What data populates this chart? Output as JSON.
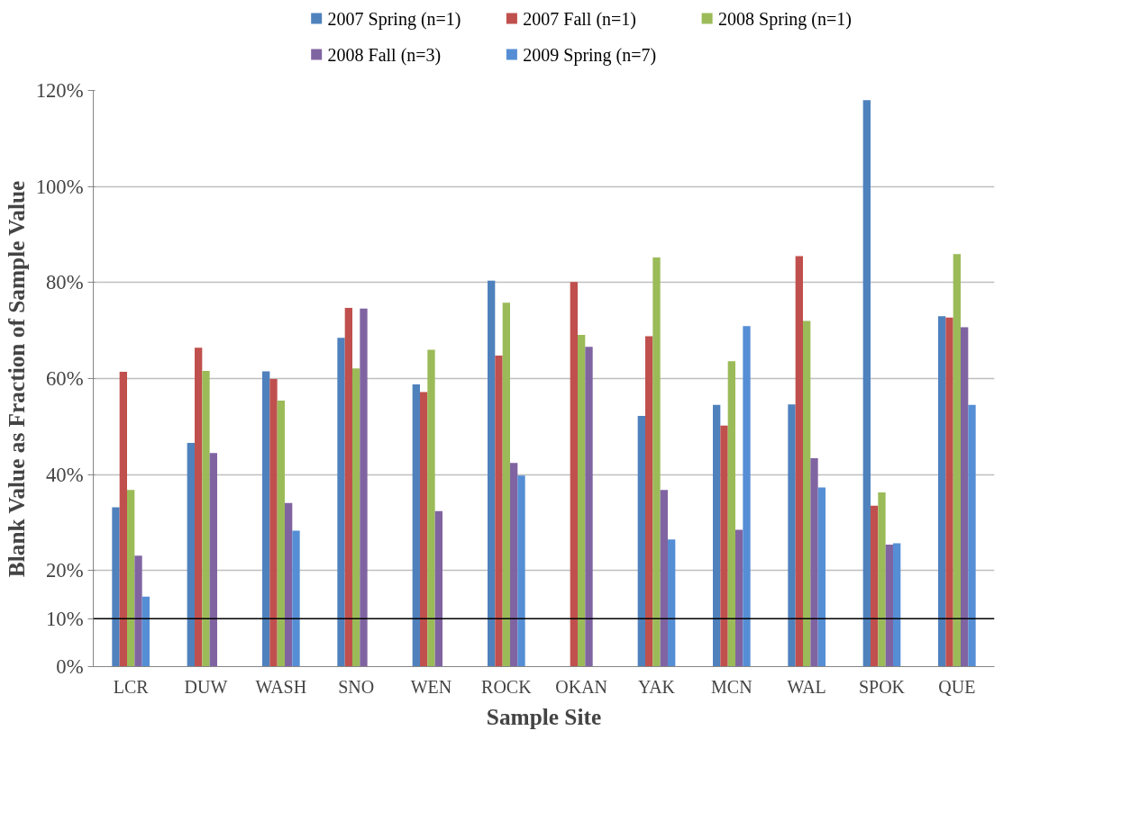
{
  "chart_data": {
    "type": "bar",
    "categories": [
      "LCR",
      "DUW",
      "WASH",
      "SNO",
      "WEN",
      "ROCK",
      "OKAN",
      "YAK",
      "MCN",
      "WAL",
      "SPOK",
      "QUE"
    ],
    "series": [
      {
        "name": "2007 Spring (n=1)",
        "color": "#4f81bd",
        "values": [
          33.2,
          46.6,
          61.5,
          68.5,
          58.8,
          80.4,
          null,
          52.2,
          54.5,
          54.6,
          118.0,
          73.0
        ]
      },
      {
        "name": "2007 Fall (n=1)",
        "color": "#c0504d",
        "values": [
          61.4,
          66.4,
          59.9,
          74.7,
          57.2,
          64.8,
          80.1,
          68.8,
          50.2,
          85.5,
          33.5,
          72.7
        ]
      },
      {
        "name": "2008 Spring (n=1)",
        "color": "#9bbb59",
        "values": [
          36.8,
          61.6,
          55.4,
          62.1,
          66.0,
          75.8,
          69.1,
          85.2,
          63.6,
          72.0,
          36.3,
          85.9
        ]
      },
      {
        "name": "2008 Fall (n=3)",
        "color": "#8064a2",
        "values": [
          23.1,
          44.5,
          34.1,
          74.6,
          32.4,
          42.4,
          66.6,
          36.8,
          28.5,
          43.4,
          25.4,
          70.7
        ]
      },
      {
        "name": "2009 Spring (n=7)",
        "color": "#558ed5",
        "values": [
          14.6,
          null,
          28.3,
          null,
          null,
          39.8,
          null,
          26.5,
          70.9,
          37.3,
          25.7,
          54.5
        ]
      }
    ],
    "xlabel": "Sample Site",
    "ylabel": "Blank Value as Fraction of Sample Value",
    "ylim": [
      0,
      120
    ],
    "yticks": [
      {
        "value": 0,
        "label": "0%"
      },
      {
        "value": 10,
        "label": "10%"
      },
      {
        "value": 20,
        "label": "20%"
      },
      {
        "value": 40,
        "label": "40%"
      },
      {
        "value": 60,
        "label": "60%"
      },
      {
        "value": 80,
        "label": "80%"
      },
      {
        "value": 100,
        "label": "100%"
      },
      {
        "value": 120,
        "label": "120%"
      }
    ],
    "ref_lines": [
      {
        "axis": "y",
        "value": 10,
        "color": "#000000"
      }
    ],
    "grid": "y",
    "legend": "top"
  }
}
